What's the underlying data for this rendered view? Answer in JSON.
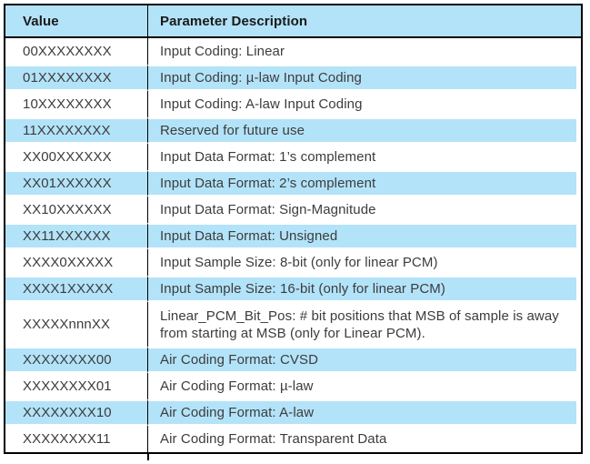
{
  "table": {
    "columns": [
      {
        "label": "Value"
      },
      {
        "label": "Parameter Description"
      }
    ],
    "rows": [
      {
        "value": "00XXXXXXXX",
        "description": "Input Coding: Linear",
        "shaded": false,
        "tall": false
      },
      {
        "value": "01XXXXXXXX",
        "description": "Input Coding: µ-law Input Coding",
        "shaded": true,
        "tall": false
      },
      {
        "value": "10XXXXXXXX",
        "description": "Input Coding: A-law Input Coding",
        "shaded": false,
        "tall": false
      },
      {
        "value": "11XXXXXXXX",
        "description": "Reserved for future use",
        "shaded": true,
        "tall": false
      },
      {
        "value": "XX00XXXXXX",
        "description": "Input Data Format: 1’s complement",
        "shaded": false,
        "tall": false
      },
      {
        "value": "XX01XXXXXX",
        "description": "Input Data Format: 2’s complement",
        "shaded": true,
        "tall": false
      },
      {
        "value": "XX10XXXXXX",
        "description": "Input Data Format: Sign-Magnitude",
        "shaded": false,
        "tall": false
      },
      {
        "value": "XX11XXXXXX",
        "description": "Input Data Format: Unsigned",
        "shaded": true,
        "tall": false
      },
      {
        "value": "XXXX0XXXXX",
        "description": "Input Sample Size: 8-bit (only for linear PCM)",
        "shaded": false,
        "tall": false
      },
      {
        "value": "XXXX1XXXXX",
        "description": "Input Sample Size: 16-bit (only for linear PCM)",
        "shaded": true,
        "tall": false
      },
      {
        "value": "XXXXXnnnXX",
        "description": "Linear_PCM_Bit_Pos: # bit positions that MSB of sample is away from starting at MSB (only for Linear PCM).",
        "shaded": false,
        "tall": true
      },
      {
        "value": "XXXXXXXX00",
        "description": "Air Coding Format: CVSD",
        "shaded": true,
        "tall": false
      },
      {
        "value": "XXXXXXXX01",
        "description": "Air Coding Format: µ-law",
        "shaded": false,
        "tall": false
      },
      {
        "value": "XXXXXXXX10",
        "description": "Air Coding Format: A-law",
        "shaded": true,
        "tall": false
      },
      {
        "value": "XXXXXXXX11",
        "description": "Air Coding Format: Transparent Data",
        "shaded": false,
        "tall": false
      }
    ]
  },
  "colors": {
    "row_shading": "#b3e3f9",
    "border": "#000000",
    "text": "#3c3c3c"
  }
}
